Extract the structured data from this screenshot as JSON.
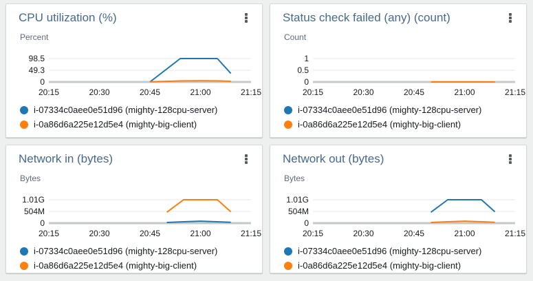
{
  "icons": {
    "panel_menu": "kebab-menu-vertical-ellipsis"
  },
  "x_axis": {
    "tick_labels": [
      "20:15",
      "20:30",
      "20:45",
      "21:00",
      "21:15"
    ],
    "unit_of_point_x": "minutes after 20:15"
  },
  "chart_data": [
    {
      "type": "line",
      "title": "CPU utilization (%)",
      "ylabel": "Percent",
      "y_ticks": [
        "98.5",
        "49.3",
        "0"
      ],
      "y_tick_values": [
        98.5,
        49.3,
        0
      ],
      "ymax": 98.5,
      "x_ticks": [
        "20:15",
        "20:30",
        "20:45",
        "21:00",
        "21:15"
      ],
      "x_range_minutes": [
        0,
        60
      ],
      "grid": "horizontal-only",
      "legend_position": "bottom-left",
      "series": [
        {
          "name": "i-07334c0aee0e51d96 (mighty-128cpu-server)",
          "color": "#1f77b4",
          "points": [
            [
              30,
              0
            ],
            [
              39,
              98.5
            ],
            [
              50,
              98.5
            ],
            [
              54,
              36
            ]
          ]
        },
        {
          "name": "i-0a86d6a225e12d5e4 (mighty-big-client)",
          "color": "#ff7f0e",
          "points": [
            [
              30,
              1
            ],
            [
              40,
              4.5
            ],
            [
              45,
              5
            ],
            [
              50,
              4.5
            ],
            [
              54,
              3
            ]
          ]
        }
      ]
    },
    {
      "type": "line",
      "title": "Status check failed (any) (count)",
      "ylabel": "Count",
      "y_ticks": [
        "1",
        "0.5",
        "0"
      ],
      "y_tick_values": [
        1,
        0.5,
        0
      ],
      "ymax": 1,
      "x_ticks": [
        "20:15",
        "20:30",
        "20:45",
        "21:00",
        "21:15"
      ],
      "x_range_minutes": [
        0,
        60
      ],
      "grid": "horizontal-only",
      "legend_position": "bottom-left",
      "series": [
        {
          "name": "i-07334c0aee0e51d96 (mighty-128cpu-server)",
          "color": "#1f77b4",
          "points": [
            [
              35,
              0
            ],
            [
              54,
              0
            ]
          ]
        },
        {
          "name": "i-0a86d6a225e12d5e4 (mighty-big-client)",
          "color": "#ff7f0e",
          "points": [
            [
              35,
              0
            ],
            [
              54,
              0
            ]
          ]
        }
      ]
    },
    {
      "type": "line",
      "title": "Network in (bytes)",
      "ylabel": "Bytes",
      "y_ticks": [
        "1.01G",
        "504M",
        "0"
      ],
      "y_tick_values": [
        1010000000,
        504000000,
        0
      ],
      "ymax": 1010000000,
      "x_ticks": [
        "20:15",
        "20:30",
        "20:45",
        "21:00",
        "21:15"
      ],
      "x_range_minutes": [
        0,
        60
      ],
      "grid": "horizontal-only",
      "legend_position": "bottom-left",
      "series": [
        {
          "name": "i-07334c0aee0e51d96 (mighty-128cpu-server)",
          "color": "#1f77b4",
          "points": [
            [
              35,
              30000000
            ],
            [
              45,
              85000000
            ],
            [
              54,
              40000000
            ]
          ]
        },
        {
          "name": "i-0a86d6a225e12d5e4 (mighty-big-client)",
          "color": "#ff7f0e",
          "points": [
            [
              35,
              470000000
            ],
            [
              40,
              1010000000
            ],
            [
              50,
              1010000000
            ],
            [
              54,
              490000000
            ]
          ]
        }
      ]
    },
    {
      "type": "line",
      "title": "Network out (bytes)",
      "ylabel": "Bytes",
      "y_ticks": [
        "1.01G",
        "504M",
        "0"
      ],
      "y_tick_values": [
        1010000000,
        504000000,
        0
      ],
      "ymax": 1010000000,
      "x_ticks": [
        "20:15",
        "20:30",
        "20:45",
        "21:00",
        "21:15"
      ],
      "x_range_minutes": [
        0,
        60
      ],
      "grid": "horizontal-only",
      "legend_position": "bottom-left",
      "series": [
        {
          "name": "i-07334c0aee0e51d96 (mighty-128cpu-server)",
          "color": "#1f77b4",
          "points": [
            [
              35,
              470000000
            ],
            [
              40,
              1010000000
            ],
            [
              50,
              1010000000
            ],
            [
              54,
              490000000
            ]
          ]
        },
        {
          "name": "i-0a86d6a225e12d5e4 (mighty-big-client)",
          "color": "#ff7f0e",
          "points": [
            [
              35,
              30000000
            ],
            [
              45,
              85000000
            ],
            [
              54,
              40000000
            ]
          ]
        }
      ]
    }
  ]
}
